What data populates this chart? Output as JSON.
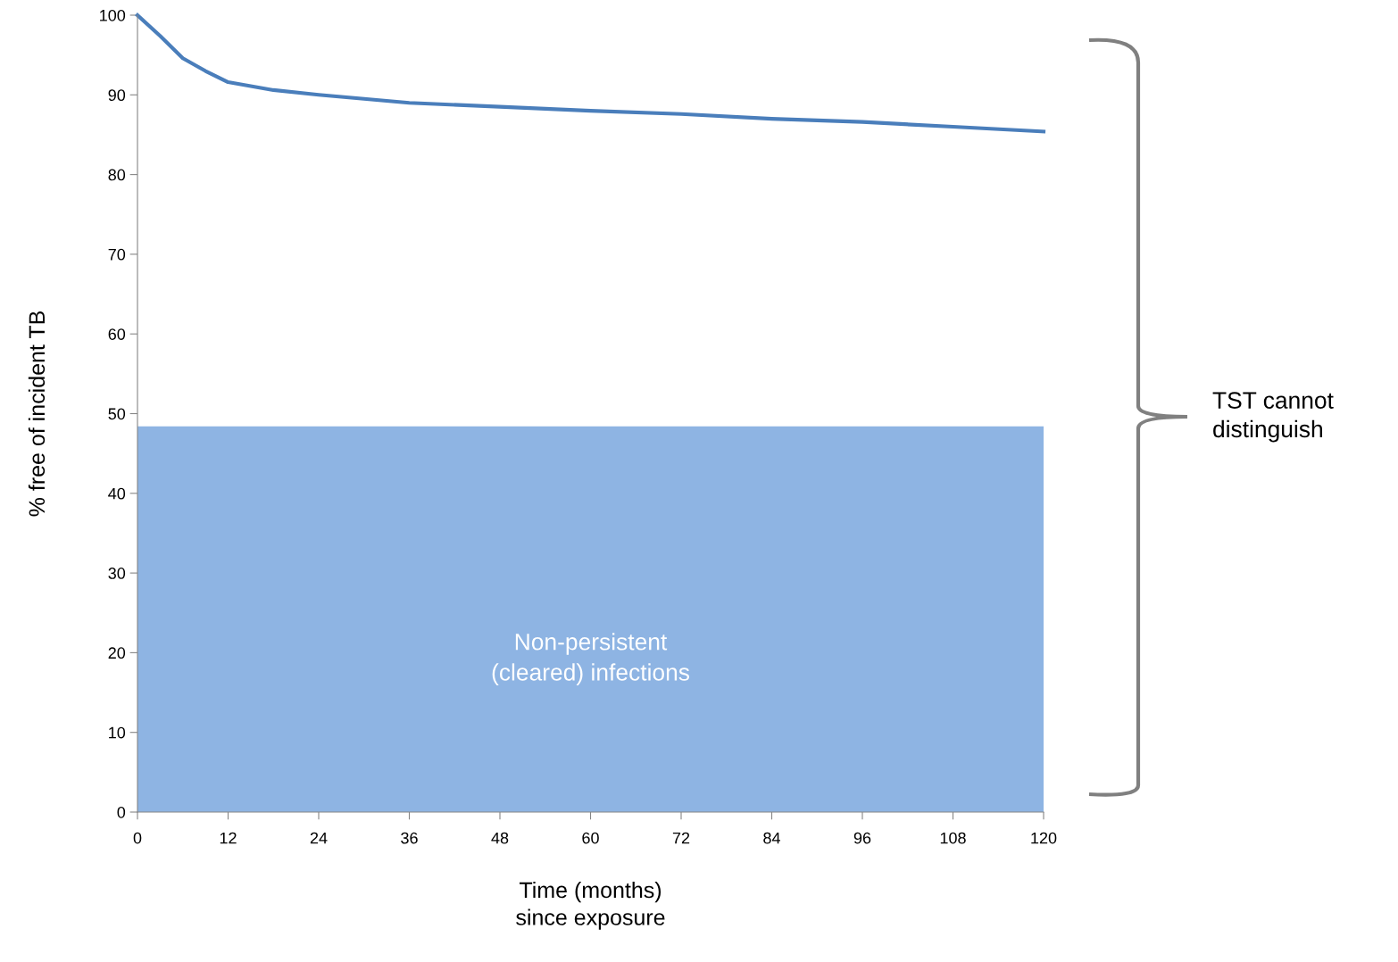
{
  "chart_data": {
    "type": "line",
    "xlabel": "Time (months)\nsince exposure",
    "ylabel": "% free of incident TB",
    "x": [
      0,
      3,
      6,
      9,
      12,
      18,
      24,
      36,
      48,
      60,
      72,
      84,
      96,
      108,
      120
    ],
    "series": [
      {
        "color": "#4a7ebb",
        "values": [
          100,
          97.4,
          94.6,
          93.0,
          91.6,
          90.6,
          90.0,
          89.0,
          88.5,
          88.0,
          87.6,
          87.0,
          86.6,
          86.0,
          85.4
        ]
      }
    ],
    "xlim": [
      0,
      120
    ],
    "xticks": [
      0,
      12,
      24,
      36,
      48,
      60,
      72,
      84,
      96,
      108,
      120
    ],
    "ylim": [
      0,
      100
    ],
    "yticks": [
      0,
      10,
      20,
      30,
      40,
      50,
      60,
      70,
      80,
      90,
      100
    ],
    "bands": [
      {
        "axis": "y",
        "from": 0,
        "to": 48.4,
        "label": "Non-persistent\n(cleared) infections",
        "color": "#8eb4e3"
      }
    ],
    "annotations": [
      "TST cannot\ndistinguish"
    ],
    "grid": false,
    "legend": false,
    "marker": "none",
    "line_style": "solid"
  }
}
